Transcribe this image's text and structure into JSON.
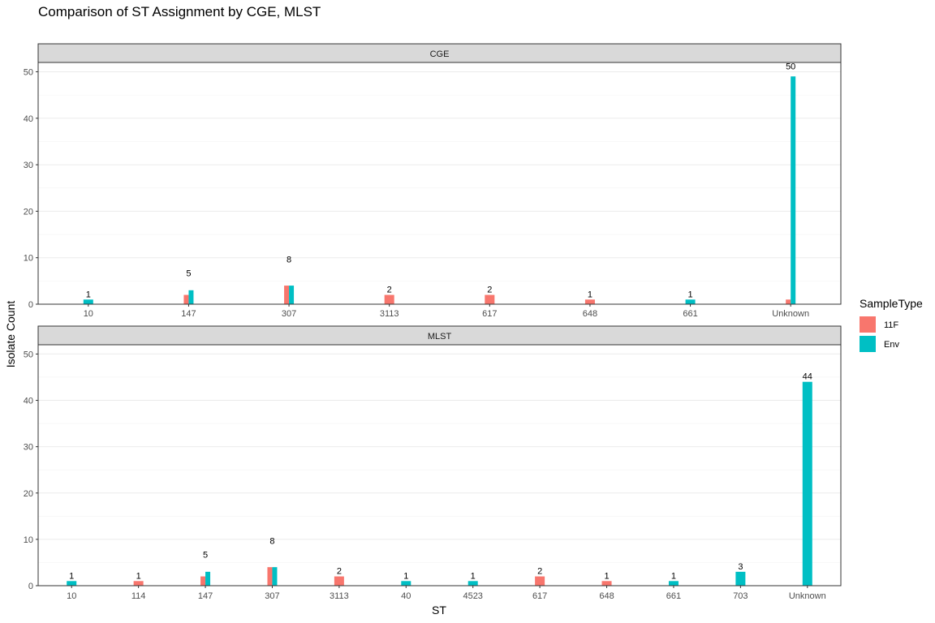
{
  "chart_data": {
    "type": "bar",
    "title": "Comparison of ST Assignment by CGE, MLST",
    "xlabel": "ST",
    "ylabel": "Isolate Count",
    "ylim": [
      0,
      52
    ],
    "yticks": [
      0,
      10,
      20,
      30,
      40,
      50
    ],
    "grid": true,
    "legend": {
      "title": "SampleType",
      "position": "right",
      "entries": [
        {
          "name": "11F",
          "color": "#F8766D"
        },
        {
          "name": "Env",
          "color": "#00BFC4"
        }
      ]
    },
    "panels": [
      {
        "name": "CGE",
        "categories": [
          "10",
          "147",
          "307",
          "3113",
          "617",
          "648",
          "661",
          "Unknown"
        ],
        "series": [
          {
            "name": "11F",
            "values": [
              0,
              2,
              4,
              2,
              2,
              1,
              0,
              1
            ]
          },
          {
            "name": "Env",
            "values": [
              1,
              3,
              4,
              0,
              0,
              0,
              1,
              49
            ]
          }
        ],
        "labels": [
          {
            "category": "10",
            "text": "1",
            "y": 1
          },
          {
            "category": "147",
            "text": "5",
            "y": 5.5
          },
          {
            "category": "307",
            "text": "8",
            "y": 8.5
          },
          {
            "category": "3113",
            "text": "2",
            "y": 2
          },
          {
            "category": "617",
            "text": "2",
            "y": 2
          },
          {
            "category": "648",
            "text": "1",
            "y": 1
          },
          {
            "category": "661",
            "text": "1",
            "y": 1
          },
          {
            "category": "Unknown",
            "text": "50",
            "y": 50
          }
        ]
      },
      {
        "name": "MLST",
        "categories": [
          "10",
          "114",
          "147",
          "307",
          "3113",
          "40",
          "4523",
          "617",
          "648",
          "661",
          "703",
          "Unknown"
        ],
        "series": [
          {
            "name": "11F",
            "values": [
              0,
              1,
              2,
              4,
              2,
              0,
              0,
              2,
              1,
              0,
              0,
              0
            ]
          },
          {
            "name": "Env",
            "values": [
              1,
              0,
              3,
              4,
              0,
              1,
              1,
              0,
              0,
              1,
              3,
              44
            ]
          }
        ],
        "labels": [
          {
            "category": "10",
            "text": "1",
            "y": 1
          },
          {
            "category": "114",
            "text": "1",
            "y": 1
          },
          {
            "category": "147",
            "text": "5",
            "y": 5.5
          },
          {
            "category": "307",
            "text": "8",
            "y": 8.5
          },
          {
            "category": "3113",
            "text": "2",
            "y": 2
          },
          {
            "category": "40",
            "text": "1",
            "y": 1
          },
          {
            "category": "4523",
            "text": "1",
            "y": 1
          },
          {
            "category": "617",
            "text": "2",
            "y": 2
          },
          {
            "category": "648",
            "text": "1",
            "y": 1
          },
          {
            "category": "661",
            "text": "1",
            "y": 1
          },
          {
            "category": "703",
            "text": "3",
            "y": 3
          },
          {
            "category": "Unknown",
            "text": "44",
            "y": 44
          }
        ]
      }
    ]
  }
}
